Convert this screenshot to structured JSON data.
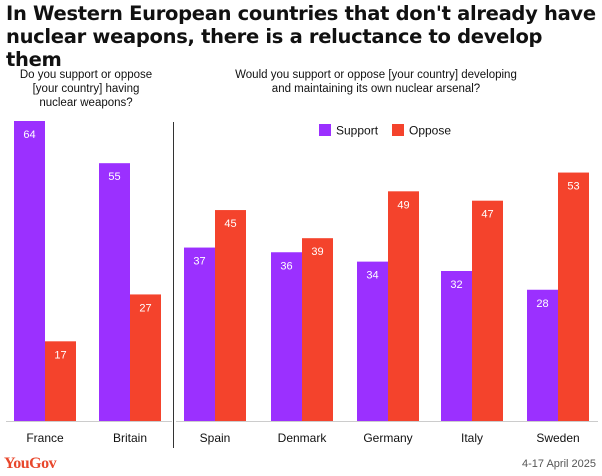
{
  "title": "In Western European countries that don't already have nuclear weapons, there is a reluctance to develop them",
  "left_subtitle": "Do you support or oppose\n[your country] having\nnuclear weapons?",
  "right_subtitle": "Would you support or oppose [your country] developing\nand maintaining its own nuclear arsenal?",
  "legend": [
    "Support",
    "Oppose"
  ],
  "colors": {
    "support": "#9b30ff",
    "oppose": "#f4432c",
    "divider": "#333333",
    "baseline": "#cccccc"
  },
  "chart_data": [
    {
      "type": "bar",
      "categories": [
        "France",
        "Britain"
      ],
      "series": [
        {
          "name": "Support",
          "values": [
            64,
            55
          ]
        },
        {
          "name": "Oppose",
          "values": [
            17,
            27
          ]
        }
      ],
      "ylim": [
        0,
        64
      ]
    },
    {
      "type": "bar",
      "categories": [
        "Spain",
        "Denmark",
        "Germany",
        "Italy",
        "Sweden"
      ],
      "series": [
        {
          "name": "Support",
          "values": [
            37,
            36,
            34,
            32,
            28
          ]
        },
        {
          "name": "Oppose",
          "values": [
            45,
            39,
            49,
            47,
            53
          ]
        }
      ],
      "ylim": [
        0,
        64
      ]
    }
  ],
  "footer": {
    "brand": "YouGov",
    "date": "4-17 April 2025"
  }
}
